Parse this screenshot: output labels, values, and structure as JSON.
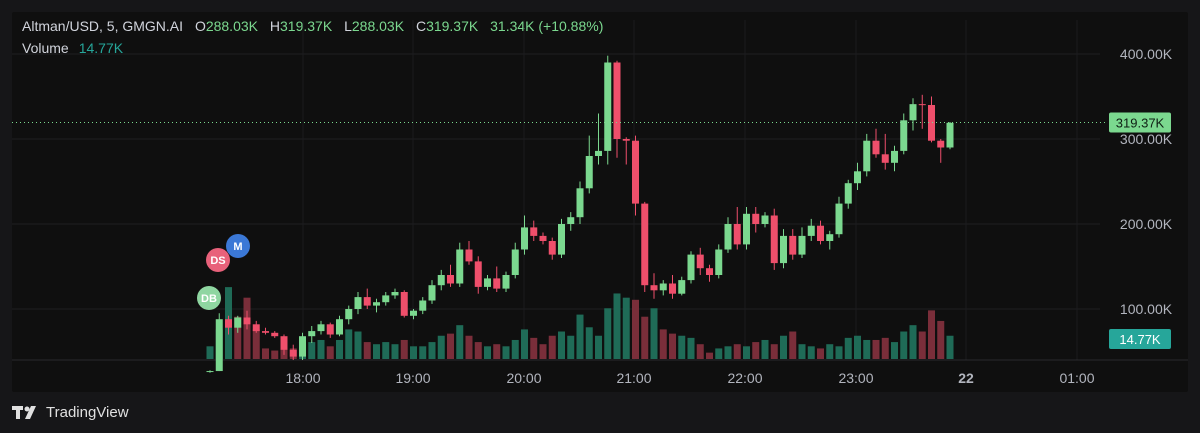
{
  "header": {
    "symbol": "Altman/USD, 5, GMGN.AI",
    "o_label": "O",
    "o_value": "288.03K",
    "h_label": "H",
    "h_value": "319.37K",
    "l_label": "L",
    "l_value": "288.03K",
    "c_label": "C",
    "c_value": "319.37K",
    "change": "31.34K (+10.88%)"
  },
  "volume_header": {
    "label": "Volume",
    "value": "14.77K"
  },
  "price_badge": "319.37K",
  "volume_badge": "14.77K",
  "markers": [
    {
      "text": "M",
      "color": "#3b78d6"
    },
    {
      "text": "DS",
      "color": "#e8617a"
    },
    {
      "text": "DB",
      "color": "#8fd6a1"
    }
  ],
  "branding": {
    "name": "TradingView"
  },
  "colors": {
    "up": "#7bd88f",
    "down": "#ef4f6b",
    "vol_up": "#1f6b57",
    "vol_down": "#7a2e3a"
  },
  "chart_data": {
    "type": "candlestick",
    "price_axis": {
      "ticks": [
        100,
        200,
        300,
        400
      ],
      "tick_labels": [
        "100.00K",
        "200.00K",
        "300.00K",
        "400.00K"
      ],
      "range": [
        40,
        440
      ]
    },
    "time_axis": {
      "tick_labels": [
        "18:00",
        "19:00",
        "20:00",
        "21:00",
        "22:00",
        "23:00",
        "22",
        "01:00"
      ]
    },
    "last_price": 319.37,
    "candles": [
      [
        26,
        28,
        25,
        27
      ],
      [
        27,
        95,
        27,
        88
      ],
      [
        88,
        92,
        70,
        78
      ],
      [
        78,
        92,
        72,
        90
      ],
      [
        90,
        98,
        76,
        82
      ],
      [
        82,
        86,
        72,
        74
      ],
      [
        74,
        78,
        70,
        72
      ],
      [
        72,
        74,
        66,
        68
      ],
      [
        68,
        70,
        46,
        52
      ],
      [
        52,
        58,
        40,
        44
      ],
      [
        44,
        72,
        40,
        68
      ],
      [
        68,
        80,
        60,
        74
      ],
      [
        74,
        86,
        70,
        82
      ],
      [
        82,
        84,
        66,
        70
      ],
      [
        70,
        92,
        68,
        88
      ],
      [
        88,
        104,
        82,
        100
      ],
      [
        100,
        120,
        94,
        114
      ],
      [
        114,
        124,
        100,
        104
      ],
      [
        104,
        112,
        96,
        108
      ],
      [
        108,
        120,
        104,
        116
      ],
      [
        116,
        124,
        112,
        120
      ],
      [
        120,
        122,
        90,
        92
      ],
      [
        92,
        100,
        88,
        98
      ],
      [
        98,
        114,
        94,
        110
      ],
      [
        110,
        134,
        106,
        128
      ],
      [
        128,
        146,
        122,
        140
      ],
      [
        140,
        152,
        126,
        130
      ],
      [
        130,
        178,
        126,
        170
      ],
      [
        170,
        180,
        152,
        156
      ],
      [
        156,
        162,
        118,
        126
      ],
      [
        126,
        140,
        122,
        136
      ],
      [
        136,
        150,
        120,
        124
      ],
      [
        124,
        144,
        120,
        140
      ],
      [
        140,
        178,
        136,
        170
      ],
      [
        170,
        210,
        164,
        196
      ],
      [
        196,
        204,
        180,
        186
      ],
      [
        186,
        190,
        176,
        180
      ],
      [
        180,
        184,
        158,
        164
      ],
      [
        164,
        206,
        160,
        200
      ],
      [
        200,
        214,
        192,
        208
      ],
      [
        208,
        250,
        200,
        242
      ],
      [
        242,
        304,
        236,
        280
      ],
      [
        280,
        330,
        270,
        286
      ],
      [
        286,
        398,
        270,
        390
      ],
      [
        390,
        392,
        278,
        300
      ],
      [
        300,
        302,
        270,
        298
      ],
      [
        298,
        304,
        210,
        224
      ],
      [
        224,
        226,
        120,
        128
      ],
      [
        128,
        142,
        112,
        122
      ],
      [
        122,
        134,
        116,
        130
      ],
      [
        130,
        140,
        112,
        118
      ],
      [
        118,
        138,
        116,
        134
      ],
      [
        134,
        168,
        130,
        164
      ],
      [
        164,
        172,
        140,
        148
      ],
      [
        148,
        152,
        132,
        140
      ],
      [
        140,
        176,
        136,
        170
      ],
      [
        170,
        208,
        166,
        200
      ],
      [
        200,
        220,
        170,
        176
      ],
      [
        176,
        220,
        170,
        212
      ],
      [
        212,
        220,
        190,
        200
      ],
      [
        200,
        214,
        196,
        210
      ],
      [
        210,
        218,
        146,
        154
      ],
      [
        154,
        194,
        148,
        186
      ],
      [
        186,
        194,
        158,
        164
      ],
      [
        164,
        196,
        160,
        186
      ],
      [
        186,
        206,
        180,
        198
      ],
      [
        198,
        204,
        176,
        180
      ],
      [
        180,
        192,
        170,
        188
      ],
      [
        188,
        232,
        184,
        224
      ],
      [
        224,
        252,
        218,
        248
      ],
      [
        248,
        272,
        240,
        262
      ],
      [
        262,
        306,
        256,
        298
      ],
      [
        298,
        312,
        278,
        282
      ],
      [
        282,
        306,
        264,
        272
      ],
      [
        272,
        292,
        262,
        286
      ],
      [
        286,
        330,
        282,
        322
      ],
      [
        322,
        348,
        310,
        341
      ],
      [
        341,
        352,
        312,
        340
      ],
      [
        340,
        350,
        296,
        298
      ],
      [
        298,
        300,
        272,
        290
      ],
      [
        290,
        320,
        288,
        319
      ]
    ],
    "volume_axis": {
      "range": [
        0,
        70
      ]
    },
    "volume": [
      [
        12,
        1
      ],
      [
        28,
        1
      ],
      [
        68,
        1
      ],
      [
        40,
        0
      ],
      [
        58,
        0
      ],
      [
        28,
        0
      ],
      [
        10,
        0
      ],
      [
        8,
        0
      ],
      [
        12,
        0
      ],
      [
        10,
        0
      ],
      [
        8,
        1
      ],
      [
        16,
        1
      ],
      [
        18,
        1
      ],
      [
        12,
        0
      ],
      [
        18,
        1
      ],
      [
        28,
        1
      ],
      [
        26,
        1
      ],
      [
        16,
        0
      ],
      [
        14,
        1
      ],
      [
        16,
        1
      ],
      [
        14,
        1
      ],
      [
        18,
        0
      ],
      [
        12,
        1
      ],
      [
        12,
        1
      ],
      [
        16,
        1
      ],
      [
        22,
        1
      ],
      [
        24,
        0
      ],
      [
        32,
        1
      ],
      [
        22,
        0
      ],
      [
        16,
        0
      ],
      [
        12,
        1
      ],
      [
        14,
        0
      ],
      [
        12,
        1
      ],
      [
        18,
        1
      ],
      [
        28,
        1
      ],
      [
        20,
        0
      ],
      [
        14,
        0
      ],
      [
        22,
        0
      ],
      [
        26,
        1
      ],
      [
        22,
        1
      ],
      [
        42,
        1
      ],
      [
        30,
        1
      ],
      [
        22,
        1
      ],
      [
        48,
        1
      ],
      [
        62,
        1
      ],
      [
        58,
        1
      ],
      [
        56,
        0
      ],
      [
        40,
        0
      ],
      [
        48,
        1
      ],
      [
        28,
        0
      ],
      [
        24,
        0
      ],
      [
        22,
        1
      ],
      [
        20,
        1
      ],
      [
        14,
        0
      ],
      [
        6,
        0
      ],
      [
        10,
        1
      ],
      [
        12,
        1
      ],
      [
        14,
        0
      ],
      [
        12,
        1
      ],
      [
        16,
        0
      ],
      [
        18,
        1
      ],
      [
        14,
        0
      ],
      [
        22,
        1
      ],
      [
        26,
        0
      ],
      [
        14,
        1
      ],
      [
        12,
        1
      ],
      [
        10,
        0
      ],
      [
        14,
        1
      ],
      [
        12,
        1
      ],
      [
        20,
        1
      ],
      [
        22,
        1
      ],
      [
        18,
        1
      ],
      [
        18,
        0
      ],
      [
        20,
        0
      ],
      [
        16,
        1
      ],
      [
        26,
        1
      ],
      [
        32,
        1
      ],
      [
        26,
        0
      ],
      [
        46,
        0
      ],
      [
        36,
        0
      ],
      [
        22,
        1
      ]
    ]
  }
}
